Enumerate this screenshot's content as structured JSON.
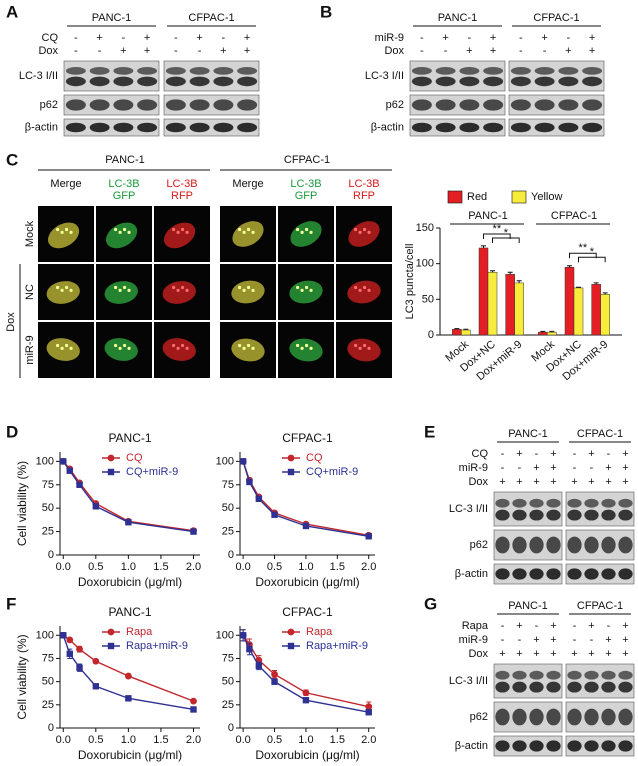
{
  "panel_labels": [
    "A",
    "B",
    "C",
    "D",
    "E",
    "F",
    "G"
  ],
  "blots": [
    {
      "cell_lines": [
        "PANC-1",
        "CFPAC-1"
      ],
      "conditions": [
        {
          "name": "CQ",
          "signs": [
            "-",
            "+",
            "-",
            "+",
            "-",
            "+",
            "-",
            "+"
          ]
        },
        {
          "name": "Dox",
          "signs": [
            "-",
            "-",
            "+",
            "+",
            "-",
            "-",
            "+",
            "+"
          ]
        }
      ],
      "bands": [
        "LC-3 I/II",
        "p62",
        "β-actin"
      ]
    },
    {
      "cell_lines": [
        "PANC-1",
        "CFPAC-1"
      ],
      "conditions": [
        {
          "name": "miR-9",
          "signs": [
            "-",
            "+",
            "-",
            "+",
            "-",
            "+",
            "-",
            "+"
          ]
        },
        {
          "name": "Dox",
          "signs": [
            "-",
            "-",
            "+",
            "+",
            "-",
            "-",
            "+",
            "+"
          ]
        }
      ],
      "bands": [
        "LC-3 I/II",
        "p62",
        "β-actin"
      ]
    },
    {
      "cell_lines": [
        "PANC-1",
        "CFPAC-1"
      ],
      "conditions": [
        {
          "name": "CQ",
          "signs": [
            "-",
            "+",
            "-",
            "+",
            "-",
            "+",
            "-",
            "+"
          ]
        },
        {
          "name": "miR-9",
          "signs": [
            "-",
            "-",
            "+",
            "+",
            "-",
            "-",
            "+",
            "+"
          ]
        },
        {
          "name": "Dox",
          "signs": [
            "+",
            "+",
            "+",
            "+",
            "+",
            "+",
            "+",
            "+"
          ]
        }
      ],
      "bands": [
        "LC-3 I/II",
        "p62",
        "β-actin"
      ]
    },
    {
      "cell_lines": [
        "PANC-1",
        "CFPAC-1"
      ],
      "conditions": [
        {
          "name": "Rapa",
          "signs": [
            "-",
            "+",
            "-",
            "+",
            "-",
            "+",
            "-",
            "+"
          ]
        },
        {
          "name": "miR-9",
          "signs": [
            "-",
            "-",
            "+",
            "+",
            "-",
            "-",
            "+",
            "+"
          ]
        },
        {
          "name": "Dox",
          "signs": [
            "+",
            "+",
            "+",
            "+",
            "+",
            "+",
            "+",
            "+"
          ]
        }
      ],
      "bands": [
        "LC-3 I/II",
        "p62",
        "β-actin"
      ]
    }
  ],
  "imaging": {
    "cell_lines": [
      "PANC-1",
      "CFPAC-1"
    ],
    "channels": [
      [
        "Merge"
      ],
      [
        "LC-3B",
        "GFP"
      ],
      [
        "LC-3B",
        "RFP"
      ]
    ],
    "rows": [
      "Mock",
      "NC",
      "miR-9"
    ],
    "treatment": "Dox"
  },
  "chart_data": [
    {
      "type": "bar",
      "y_label": "LC3 puncta/cell",
      "groups": [
        "PANC-1",
        "CFPAC-1"
      ],
      "categories": [
        "Mock",
        "Dox+NC",
        "Dox+miR-9",
        "Mock",
        "Dox+NC",
        "Dox+miR-9"
      ],
      "series": [
        {
          "name": "Red",
          "color": "#e31e24",
          "values": [
            8,
            122,
            85,
            4,
            95,
            71
          ],
          "errors": [
            1,
            3,
            3,
            1,
            2,
            2
          ]
        },
        {
          "name": "Yellow",
          "color": "#f7ec3b",
          "values": [
            7,
            88,
            73,
            4,
            66,
            57
          ],
          "errors": [
            1,
            2,
            3,
            1,
            1,
            2
          ]
        }
      ],
      "ylim": [
        0,
        150
      ],
      "yticks": [
        0,
        50,
        100,
        150
      ],
      "annotations": [
        "**",
        "*",
        "**",
        "*"
      ]
    },
    {
      "type": "line",
      "title": "PANC-1",
      "x_label": "Doxorubicin (μg/ml)",
      "y_label": "Cell viability (%)",
      "x": [
        0,
        0.1,
        0.25,
        0.5,
        1,
        2
      ],
      "series": [
        {
          "name": "CQ",
          "color": "#c1272d",
          "marker": "circle",
          "values": [
            100,
            92,
            77,
            55,
            36,
            26
          ]
        },
        {
          "name": "CQ+miR-9",
          "color": "#2e3192",
          "marker": "square",
          "values": [
            100,
            90,
            75,
            52,
            35,
            25
          ]
        }
      ],
      "xlim": [
        -0.05,
        2.1
      ],
      "ylim": [
        0,
        110
      ],
      "xticks": [
        {
          "value": 0,
          "label": "0.0"
        },
        {
          "value": 0.5,
          "label": "0.5"
        },
        {
          "value": 1,
          "label": "1.0"
        },
        {
          "value": 1.5,
          "label": "1.5"
        },
        {
          "value": 2,
          "label": "2.0"
        }
      ],
      "yticks": [
        0,
        25,
        50,
        75,
        100
      ]
    },
    {
      "type": "line",
      "title": "CFPAC-1",
      "x_label": "Doxorubicin (μg/ml)",
      "x": [
        0,
        0.1,
        0.25,
        0.5,
        1,
        2
      ],
      "series": [
        {
          "name": "CQ",
          "color": "#c1272d",
          "marker": "circle",
          "values": [
            100,
            80,
            62,
            45,
            33,
            21
          ]
        },
        {
          "name": "CQ+miR-9",
          "color": "#2e3192",
          "marker": "square",
          "values": [
            100,
            78,
            60,
            43,
            31,
            20
          ]
        }
      ],
      "xlim": [
        -0.05,
        2.1
      ],
      "ylim": [
        0,
        110
      ],
      "xticks": [
        {
          "value": 0,
          "label": "0.0"
        },
        {
          "value": 0.5,
          "label": "0.5"
        },
        {
          "value": 1,
          "label": "1.0"
        },
        {
          "value": 1.5,
          "label": "1.5"
        },
        {
          "value": 2,
          "label": "2.0"
        }
      ],
      "yticks": [
        0,
        25,
        50,
        75,
        100
      ]
    },
    {
      "type": "line",
      "title": "PANC-1",
      "x_label": "Doxorubicin (μg/ml)",
      "y_label": "Cell viability (%)",
      "x": [
        0,
        0.1,
        0.25,
        0.5,
        1,
        2
      ],
      "series": [
        {
          "name": "Rapa",
          "color": "#c1272d",
          "marker": "circle",
          "values": [
            100,
            95,
            85,
            72,
            56,
            29
          ],
          "errors": [
            2,
            2,
            3,
            2,
            2,
            2
          ]
        },
        {
          "name": "Rapa+miR-9",
          "color": "#2e3192",
          "marker": "square",
          "values": [
            100,
            80,
            65,
            45,
            32,
            20
          ],
          "errors": [
            2,
            5,
            4,
            2,
            2,
            2
          ]
        }
      ],
      "xlim": [
        -0.05,
        2.1
      ],
      "ylim": [
        0,
        110
      ],
      "xticks": [
        {
          "value": 0,
          "label": "0.0"
        },
        {
          "value": 0.5,
          "label": "0.5"
        },
        {
          "value": 1,
          "label": "1.0"
        },
        {
          "value": 1.5,
          "label": "1.5"
        },
        {
          "value": 2,
          "label": "2.0"
        }
      ],
      "yticks": [
        0,
        25,
        50,
        75,
        100
      ]
    },
    {
      "type": "line",
      "title": "CFPAC-1",
      "x_label": "Doxorubicin (μg/ml)",
      "x": [
        0,
        0.1,
        0.25,
        0.5,
        1,
        2
      ],
      "series": [
        {
          "name": "Rapa",
          "color": "#c1272d",
          "marker": "circle",
          "values": [
            100,
            90,
            73,
            58,
            38,
            23
          ],
          "errors": [
            6,
            6,
            5,
            4,
            3,
            5
          ]
        },
        {
          "name": "Rapa+miR-9",
          "color": "#2e3192",
          "marker": "square",
          "values": [
            100,
            85,
            67,
            50,
            30,
            17
          ],
          "errors": [
            6,
            6,
            4,
            3,
            2,
            2
          ]
        }
      ],
      "xlim": [
        -0.05,
        2.1
      ],
      "ylim": [
        0,
        110
      ],
      "xticks": [
        {
          "value": 0,
          "label": "0.0"
        },
        {
          "value": 0.5,
          "label": "0.5"
        },
        {
          "value": 1,
          "label": "1.0"
        },
        {
          "value": 1.5,
          "label": "1.5"
        },
        {
          "value": 2,
          "label": "2.0"
        }
      ],
      "yticks": [
        0,
        25,
        50,
        75,
        100
      ]
    }
  ]
}
